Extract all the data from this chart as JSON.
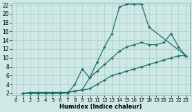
{
  "xlabel": "Humidex (Indice chaleur)",
  "background_color": "#cde8e5",
  "grid_color": "#a8ccca",
  "line_color": "#1a6e62",
  "xlim": [
    -0.5,
    23.5
  ],
  "ylim": [
    1.5,
    22.5
  ],
  "xticks": [
    0,
    1,
    2,
    3,
    4,
    5,
    6,
    7,
    8,
    9,
    10,
    11,
    12,
    13,
    14,
    15,
    16,
    17,
    18,
    19,
    20,
    21,
    22,
    23
  ],
  "yticks": [
    2,
    4,
    6,
    8,
    10,
    12,
    14,
    16,
    18,
    20,
    22
  ],
  "line1_x": [
    1,
    2,
    3,
    4,
    5,
    6,
    7,
    8,
    9,
    10,
    11,
    12,
    13,
    14,
    15,
    16,
    17,
    18,
    23
  ],
  "line1_y": [
    2,
    2.2,
    2.2,
    2.2,
    2.2,
    2.2,
    2.2,
    2.5,
    2.8,
    5.5,
    9,
    12.5,
    15.5,
    21.5,
    22.2,
    22.2,
    22.2,
    17,
    10.5
  ],
  "line2_x": [
    1,
    2,
    3,
    4,
    5,
    6,
    7,
    8,
    9,
    10,
    11,
    12,
    13,
    14,
    15,
    16,
    17,
    18,
    19,
    20,
    21,
    22,
    23
  ],
  "line2_y": [
    2,
    2,
    2,
    2,
    2,
    2,
    2,
    4,
    7.5,
    5.5,
    7,
    8.5,
    10,
    11.5,
    12.5,
    13,
    13.5,
    13,
    13,
    13.5,
    15.5,
    12.5,
    10.5
  ],
  "line3_x": [
    1,
    2,
    3,
    4,
    5,
    6,
    7,
    8,
    9,
    10,
    11,
    12,
    13,
    14,
    15,
    16,
    17,
    18,
    19,
    20,
    21,
    22,
    23
  ],
  "line3_y": [
    2,
    2,
    2,
    2,
    2,
    2,
    2.2,
    2.5,
    2.7,
    3,
    4,
    5,
    6,
    6.5,
    7,
    7.5,
    8,
    8.5,
    9,
    9.5,
    10,
    10.5,
    10.5
  ],
  "xtick_fontsize": 5.0,
  "ytick_fontsize": 5.5,
  "xlabel_fontsize": 6.0
}
